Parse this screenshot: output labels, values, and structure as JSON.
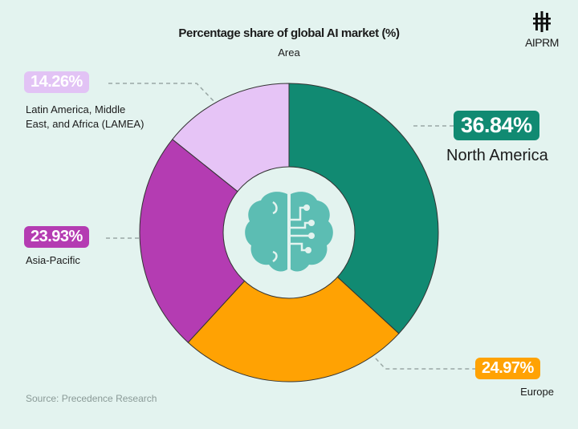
{
  "chart_data": {
    "type": "pie",
    "title": "Percentage share of global AI market (%)",
    "subtitle": "Area",
    "categories": [
      "North America",
      "Europe",
      "Asia-Pacific",
      "Latin America, Middle East, and Africa (LAMEA)"
    ],
    "values": [
      36.84,
      24.97,
      23.93,
      14.26
    ],
    "value_labels": [
      "36.84%",
      "24.97%",
      "23.93%",
      "14.26%"
    ],
    "colors": [
      "#118a72",
      "#ffa203",
      "#b43cb2",
      "#e6c4f6"
    ],
    "donut": true,
    "center_icon": "brain-circuit-icon",
    "source": "Source: Precedence Research"
  },
  "brand": {
    "name": "AIPRM",
    "icon": "aiprm-logo-icon"
  },
  "background": "#e3f3ef"
}
